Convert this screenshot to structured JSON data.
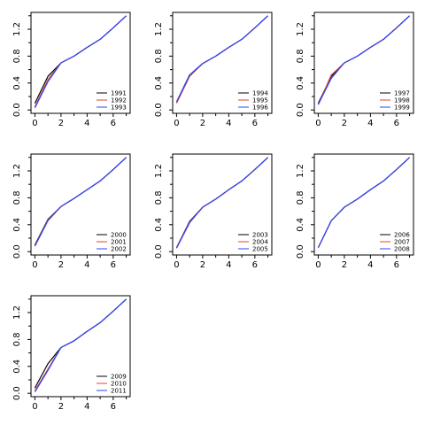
{
  "figure": {
    "background": "#ffffff",
    "series_colors": [
      "#000000",
      "#e0442a",
      "#2a46ff"
    ]
  },
  "chart_data": [
    {
      "type": "line",
      "xlim": [
        -0.3,
        7.3
      ],
      "ylim": [
        -0.05,
        1.45
      ],
      "x_ticks": [
        "0",
        "2",
        "4",
        "6"
      ],
      "y_ticks": [
        "0.0",
        "0.4",
        "0.8",
        "1.2"
      ],
      "legend_position": "bottom-right",
      "x": [
        0,
        1,
        2,
        3,
        4,
        5,
        6,
        7
      ],
      "series": [
        {
          "name": "1991",
          "values": [
            0.1,
            0.5,
            0.7,
            0.8,
            0.93,
            1.05,
            1.22,
            1.4
          ]
        },
        {
          "name": "1992",
          "values": [
            0.05,
            0.45,
            0.7,
            0.8,
            0.93,
            1.05,
            1.22,
            1.4
          ]
        },
        {
          "name": "1993",
          "values": [
            0.03,
            0.42,
            0.7,
            0.8,
            0.93,
            1.05,
            1.22,
            1.4
          ]
        }
      ]
    },
    {
      "type": "line",
      "xlim": [
        -0.3,
        7.3
      ],
      "ylim": [
        -0.05,
        1.45
      ],
      "x_ticks": [
        "0",
        "2",
        "4",
        "6"
      ],
      "y_ticks": [
        "0.0",
        "0.4",
        "0.8",
        "1.2"
      ],
      "legend_position": "bottom-right",
      "x": [
        0,
        1,
        2,
        3,
        4,
        5,
        6,
        7
      ],
      "series": [
        {
          "name": "1994",
          "values": [
            0.12,
            0.52,
            0.69,
            0.8,
            0.93,
            1.05,
            1.22,
            1.4
          ]
        },
        {
          "name": "1995",
          "values": [
            0.1,
            0.5,
            0.69,
            0.8,
            0.93,
            1.05,
            1.22,
            1.4
          ]
        },
        {
          "name": "1996",
          "values": [
            0.12,
            0.52,
            0.69,
            0.8,
            0.93,
            1.05,
            1.22,
            1.4
          ]
        }
      ]
    },
    {
      "type": "line",
      "xlim": [
        -0.3,
        7.3
      ],
      "ylim": [
        -0.05,
        1.45
      ],
      "x_ticks": [
        "0",
        "2",
        "4",
        "6"
      ],
      "y_ticks": [
        "0.0",
        "0.4",
        "0.8",
        "1.2"
      ],
      "legend_position": "bottom-right",
      "x": [
        0,
        1,
        2,
        3,
        4,
        5,
        6,
        7
      ],
      "series": [
        {
          "name": "1997",
          "values": [
            0.1,
            0.5,
            0.7,
            0.8,
            0.93,
            1.05,
            1.22,
            1.4
          ]
        },
        {
          "name": "1998",
          "values": [
            0.08,
            0.52,
            0.7,
            0.8,
            0.93,
            1.05,
            1.22,
            1.4
          ]
        },
        {
          "name": "1999",
          "values": [
            0.08,
            0.47,
            0.7,
            0.8,
            0.93,
            1.05,
            1.22,
            1.4
          ]
        }
      ]
    },
    {
      "type": "line",
      "xlim": [
        -0.3,
        7.3
      ],
      "ylim": [
        -0.05,
        1.45
      ],
      "x_ticks": [
        "0",
        "2",
        "4",
        "6"
      ],
      "y_ticks": [
        "0.0",
        "0.4",
        "0.8",
        "1.2"
      ],
      "legend_position": "bottom-right",
      "x": [
        0,
        1,
        2,
        3,
        4,
        5,
        6,
        7
      ],
      "series": [
        {
          "name": "2000",
          "values": [
            0.1,
            0.48,
            0.67,
            0.79,
            0.92,
            1.05,
            1.22,
            1.4
          ]
        },
        {
          "name": "2001",
          "values": [
            0.09,
            0.47,
            0.67,
            0.79,
            0.92,
            1.05,
            1.22,
            1.4
          ]
        },
        {
          "name": "2002",
          "values": [
            0.08,
            0.46,
            0.67,
            0.79,
            0.92,
            1.05,
            1.22,
            1.4
          ]
        }
      ]
    },
    {
      "type": "line",
      "xlim": [
        -0.3,
        7.3
      ],
      "ylim": [
        -0.05,
        1.45
      ],
      "x_ticks": [
        "0",
        "2",
        "4",
        "6"
      ],
      "y_ticks": [
        "0.0",
        "0.4",
        "0.8",
        "1.2"
      ],
      "legend_position": "bottom-right",
      "x": [
        0,
        1,
        2,
        3,
        4,
        5,
        6,
        7
      ],
      "series": [
        {
          "name": "2003",
          "values": [
            0.06,
            0.45,
            0.66,
            0.78,
            0.92,
            1.05,
            1.22,
            1.4
          ]
        },
        {
          "name": "2004",
          "values": [
            0.06,
            0.44,
            0.66,
            0.78,
            0.92,
            1.05,
            1.22,
            1.4
          ]
        },
        {
          "name": "2005",
          "values": [
            0.05,
            0.43,
            0.66,
            0.78,
            0.92,
            1.05,
            1.22,
            1.4
          ]
        }
      ]
    },
    {
      "type": "line",
      "xlim": [
        -0.3,
        7.3
      ],
      "ylim": [
        -0.05,
        1.45
      ],
      "x_ticks": [
        "0",
        "2",
        "4",
        "6"
      ],
      "y_ticks": [
        "0.0",
        "0.4",
        "0.8",
        "1.2"
      ],
      "legend_position": "bottom-right",
      "x": [
        0,
        1,
        2,
        3,
        4,
        5,
        6,
        7
      ],
      "series": [
        {
          "name": "2006",
          "values": [
            0.06,
            0.46,
            0.66,
            0.78,
            0.92,
            1.05,
            1.22,
            1.4
          ]
        },
        {
          "name": "2007",
          "values": [
            0.06,
            0.46,
            0.66,
            0.78,
            0.92,
            1.05,
            1.22,
            1.4
          ]
        },
        {
          "name": "2008",
          "values": [
            0.06,
            0.46,
            0.66,
            0.78,
            0.92,
            1.05,
            1.22,
            1.4
          ]
        }
      ]
    },
    {
      "type": "line",
      "xlim": [
        -0.3,
        7.3
      ],
      "ylim": [
        -0.05,
        1.45
      ],
      "x_ticks": [
        "0",
        "2",
        "4",
        "6"
      ],
      "y_ticks": [
        "0.0",
        "0.4",
        "0.8",
        "1.2"
      ],
      "legend_position": "bottom-right",
      "x": [
        0,
        1,
        2,
        3,
        4,
        5,
        6,
        7
      ],
      "series": [
        {
          "name": "2009",
          "values": [
            0.08,
            0.44,
            0.68,
            0.78,
            0.92,
            1.05,
            1.22,
            1.4
          ]
        },
        {
          "name": "2010",
          "values": [
            0.04,
            0.36,
            0.68,
            0.78,
            0.92,
            1.05,
            1.22,
            1.4
          ]
        },
        {
          "name": "2011",
          "values": [
            0.02,
            0.34,
            0.68,
            0.78,
            0.92,
            1.05,
            1.22,
            1.4
          ]
        }
      ]
    }
  ]
}
